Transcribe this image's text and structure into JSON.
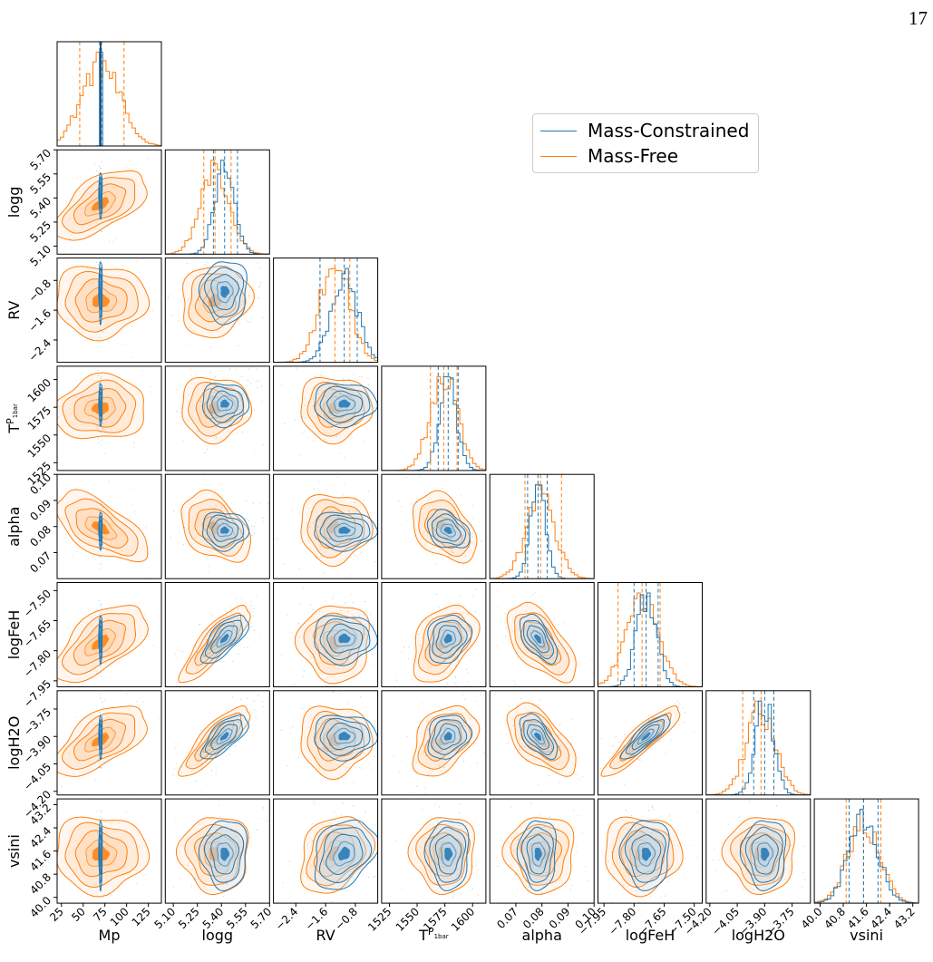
{
  "page_number": "17",
  "legend": [
    {
      "label": "Mass-Constrained",
      "color": "#1f77b4"
    },
    {
      "label": "Mass-Free",
      "color": "#ff7f0e"
    }
  ],
  "chart_data": {
    "type": "corner",
    "parameters": [
      {
        "name": "Mp",
        "label": "Mp",
        "range": [
          20,
          140
        ],
        "ticks": [
          25,
          50,
          75,
          100,
          125
        ],
        "tick_labels": [
          "25",
          "50",
          "75",
          "100",
          "125"
        ],
        "free": {
          "mean": 70,
          "sd": 22
        },
        "constrained": {
          "mean": 70,
          "sd": 0.8
        },
        "free_quantiles": [
          46,
          70,
          97
        ],
        "constrained_quantiles": [
          69,
          70,
          71
        ]
      },
      {
        "name": "logg",
        "label": "logg",
        "range": [
          5.05,
          5.7
        ],
        "ticks": [
          5.1,
          5.25,
          5.4,
          5.55,
          5.7
        ],
        "tick_labels": [
          "5.10",
          "5.25",
          "5.40",
          "5.55",
          "5.70"
        ],
        "free": {
          "mean": 5.36,
          "sd": 0.09
        },
        "constrained": {
          "mean": 5.42,
          "sd": 0.06
        },
        "free_quantiles": [
          5.29,
          5.36,
          5.46
        ],
        "constrained_quantiles": [
          5.35,
          5.42,
          5.5
        ]
      },
      {
        "name": "RV",
        "label": "RV",
        "range": [
          -3.0,
          -0.2
        ],
        "ticks": [
          -2.4,
          -1.6,
          -0.8
        ],
        "tick_labels": [
          "−2.4",
          "−1.6",
          "−0.8"
        ],
        "free": {
          "mean": -1.35,
          "sd": 0.4
        },
        "constrained": {
          "mean": -1.1,
          "sd": 0.35
        },
        "free_quantiles": [
          -1.75,
          -1.35,
          -0.95
        ],
        "constrained_quantiles": [
          -1.75,
          -1.1,
          -0.75
        ]
      },
      {
        "name": "T0",
        "label": "T",
        "label_sub": "0",
        "label_sup": "P",
        "label_supsub": "1bar",
        "range": [
          1518,
          1612
        ],
        "ticks": [
          1525,
          1550,
          1575,
          1600
        ],
        "tick_labels": [
          "1525",
          "1550",
          "1575",
          "1600"
        ],
        "free": {
          "mean": 1574,
          "sd": 12
        },
        "constrained": {
          "mean": 1578,
          "sd": 8
        },
        "free_quantiles": [
          1562,
          1574,
          1586
        ],
        "constrained_quantiles": [
          1569,
          1578,
          1587
        ]
      },
      {
        "name": "alpha",
        "label": "alpha",
        "range": [
          0.06,
          0.1
        ],
        "ticks": [
          0.07,
          0.08,
          0.09,
          0.1
        ],
        "tick_labels": [
          "0.07",
          "0.08",
          "0.09",
          "0.10"
        ],
        "free": {
          "mean": 0.0795,
          "sd": 0.0055
        },
        "constrained": {
          "mean": 0.0785,
          "sd": 0.003
        },
        "free_quantiles": [
          0.0735,
          0.0795,
          0.0875
        ],
        "constrained_quantiles": [
          0.0745,
          0.0785,
          0.082
        ]
      },
      {
        "name": "logFeH",
        "label": "logFeH",
        "range": [
          -7.98,
          -7.46
        ],
        "ticks": [
          -7.95,
          -7.8,
          -7.65,
          -7.5
        ],
        "tick_labels": [
          "−7.95",
          "−7.80",
          "−7.65",
          "−7.50"
        ],
        "free": {
          "mean": -7.76,
          "sd": 0.08
        },
        "constrained": {
          "mean": -7.74,
          "sd": 0.05
        },
        "free_quantiles": [
          -7.88,
          -7.76,
          -7.67
        ],
        "constrained_quantiles": [
          -7.8,
          -7.74,
          -7.68
        ]
      },
      {
        "name": "logH2O",
        "label": "logH2O",
        "range": [
          -4.22,
          -3.65
        ],
        "ticks": [
          -4.2,
          -4.05,
          -3.9,
          -3.75
        ],
        "tick_labels": [
          "−4.20",
          "−4.05",
          "−3.90",
          "−3.75"
        ],
        "free": {
          "mean": -3.92,
          "sd": 0.08
        },
        "constrained": {
          "mean": -3.9,
          "sd": 0.05
        },
        "free_quantiles": [
          -4.02,
          -3.92,
          -3.85
        ],
        "constrained_quantiles": [
          -3.96,
          -3.9,
          -3.85
        ]
      },
      {
        "name": "vsini",
        "label": "vsini",
        "range": [
          39.8,
          43.4
        ],
        "ticks": [
          40.0,
          40.8,
          41.6,
          42.4,
          43.2
        ],
        "tick_labels": [
          "40.0",
          "40.8",
          "41.6",
          "42.4",
          "43.2"
        ],
        "free": {
          "mean": 41.5,
          "sd": 0.55
        },
        "constrained": {
          "mean": 41.5,
          "sd": 0.5
        },
        "free_quantiles": [
          40.9,
          41.5,
          42.1
        ],
        "constrained_quantiles": [
          41.0,
          41.5,
          42.0
        ]
      }
    ],
    "correlations_free": {
      "0-1": 0.6,
      "0-3": 0.1,
      "0-4": -0.6,
      "0-5": 0.6,
      "0-6": 0.6,
      "1-4": -0.4,
      "1-5": 0.85,
      "1-6": 0.85,
      "3-4": -0.4,
      "3-5": 0.4,
      "3-6": 0.4,
      "4-5": -0.6,
      "4-6": -0.6,
      "5-6": 0.9,
      "2-7": 0.3,
      "1-2": 0.1
    },
    "correlations_constrained": {
      "1-5": 0.7,
      "1-6": 0.7,
      "4-5": -0.6,
      "4-6": -0.6,
      "5-6": 0.85,
      "3-4": -0.3,
      "3-5": 0.2,
      "3-6": 0.2,
      "2-7": 0.3
    }
  }
}
